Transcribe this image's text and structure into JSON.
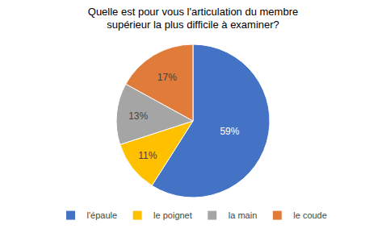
{
  "chart_data": {
    "type": "pie",
    "title": "Quelle est pour vous l'articulation du membre\nsupérieur la plus difficile à examiner?",
    "categories": [
      "l'épaule",
      "le poignet",
      "la main",
      "le coude"
    ],
    "values": [
      59,
      11,
      13,
      17
    ],
    "value_labels": [
      "59%",
      "11%",
      "13%",
      "17%"
    ],
    "colors": [
      "#4472C4",
      "#FFC000",
      "#A5A5A5",
      "#E07B39"
    ],
    "data_labels": true,
    "legend": "bottom"
  }
}
